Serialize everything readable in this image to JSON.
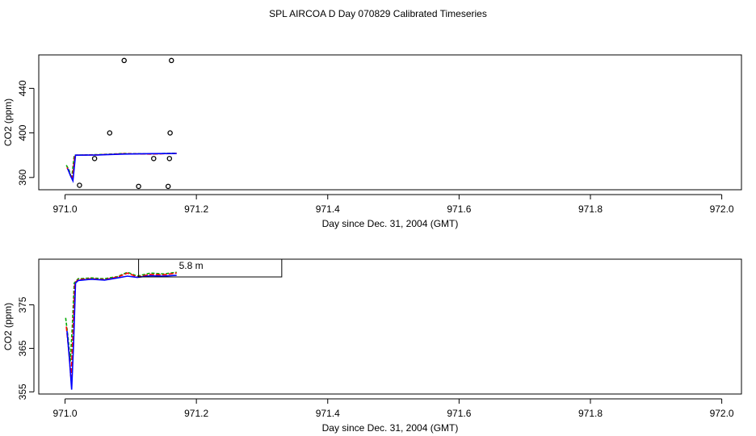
{
  "title": "SPL AIRCOA D  Day 070829  Calibrated Timeseries",
  "chart_data": [
    {
      "type": "scatter",
      "xlabel": "Day since Dec. 31, 2004 (GMT)",
      "ylabel": "CO2 (ppm)",
      "xlim": [
        970.96,
        972.03
      ],
      "ylim": [
        349,
        470
      ],
      "xticks": [
        "971.0",
        "971.2",
        "971.4",
        "971.6",
        "971.8",
        "972.0"
      ],
      "xtick_values": [
        971.0,
        971.2,
        971.4,
        971.6,
        971.8,
        972.0
      ],
      "yticks": [
        "360",
        "400",
        "440"
      ],
      "ytick_values": [
        360,
        400,
        440
      ],
      "points": [
        {
          "x": 971.022,
          "y": 353
        },
        {
          "x": 971.045,
          "y": 377
        },
        {
          "x": 971.068,
          "y": 400
        },
        {
          "x": 971.09,
          "y": 465
        },
        {
          "x": 971.112,
          "y": 352
        },
        {
          "x": 971.135,
          "y": 377
        },
        {
          "x": 971.157,
          "y": 352
        },
        {
          "x": 971.159,
          "y": 377
        },
        {
          "x": 971.16,
          "y": 400
        },
        {
          "x": 971.162,
          "y": 465
        }
      ],
      "series": [
        {
          "color": "#00aa00",
          "points": [
            [
              971.002,
              371
            ],
            [
              971.006,
              367
            ],
            [
              971.01,
              359
            ],
            [
              971.014,
              380
            ],
            [
              971.05,
              380.5
            ],
            [
              971.09,
              381.5
            ],
            [
              971.13,
              381.2
            ],
            [
              971.17,
              381.8
            ]
          ]
        },
        {
          "color": "#ff0000",
          "points": [
            [
              971.003,
              369
            ],
            [
              971.007,
              364
            ],
            [
              971.011,
              358
            ],
            [
              971.015,
              380
            ],
            [
              971.05,
              380.3
            ],
            [
              971.09,
              381.3
            ],
            [
              971.13,
              381.0
            ],
            [
              971.17,
              381.6
            ]
          ]
        },
        {
          "color": "#0000ff",
          "points": [
            [
              971.004,
              368
            ],
            [
              971.008,
              362
            ],
            [
              971.012,
              357
            ],
            [
              971.016,
              380
            ],
            [
              971.05,
              380.2
            ],
            [
              971.09,
              381.0
            ],
            [
              971.13,
              381.4
            ],
            [
              971.17,
              381.5
            ]
          ]
        }
      ]
    },
    {
      "type": "line",
      "xlabel": "Day since Dec. 31, 2004 (GMT)",
      "ylabel": "CO2 (ppm)",
      "xlim": [
        970.96,
        972.03
      ],
      "ylim": [
        354.5,
        385.5
      ],
      "xticks": [
        "971.0",
        "971.2",
        "971.4",
        "971.6",
        "971.8",
        "972.0"
      ],
      "xtick_values": [
        971.0,
        971.2,
        971.4,
        971.6,
        971.8,
        972.0
      ],
      "yticks": [
        "355",
        "365",
        "375"
      ],
      "ytick_values": [
        355,
        365,
        375
      ],
      "legend": {
        "position": "top",
        "entries": [
          "5.8 m"
        ]
      },
      "series": [
        {
          "color": "#00aa00",
          "points": [
            [
              971.001,
              372
            ],
            [
              971.005,
              367
            ],
            [
              971.008,
              362
            ],
            [
              971.011,
              370
            ],
            [
              971.014,
              380
            ],
            [
              971.02,
              381
            ],
            [
              971.04,
              381.2
            ],
            [
              971.06,
              381
            ],
            [
              971.08,
              381.5
            ],
            [
              971.095,
              382.5
            ],
            [
              971.11,
              381.6
            ],
            [
              971.13,
              382.3
            ],
            [
              971.15,
              382.1
            ],
            [
              971.17,
              382.5
            ]
          ]
        },
        {
          "color": "#ff0000",
          "points": [
            [
              971.002,
              370
            ],
            [
              971.006,
              364
            ],
            [
              971.009,
              358
            ],
            [
              971.012,
              368
            ],
            [
              971.015,
              380
            ],
            [
              971.02,
              380.8
            ],
            [
              971.04,
              381
            ],
            [
              971.06,
              380.8
            ],
            [
              971.08,
              381.4
            ],
            [
              971.095,
              382.3
            ],
            [
              971.11,
              381.4
            ],
            [
              971.13,
              382.0
            ],
            [
              971.15,
              381.9
            ],
            [
              971.17,
              382.3
            ]
          ]
        },
        {
          "color": "#0000ff",
          "points": [
            [
              971.003,
              369
            ],
            [
              971.007,
              362
            ],
            [
              971.01,
              355.5
            ],
            [
              971.013,
              366
            ],
            [
              971.016,
              380
            ],
            [
              971.02,
              380.6
            ],
            [
              971.04,
              380.9
            ],
            [
              971.06,
              380.7
            ],
            [
              971.08,
              381.2
            ],
            [
              971.095,
              381.6
            ],
            [
              971.11,
              381.3
            ],
            [
              971.13,
              381.7
            ],
            [
              971.15,
              381.6
            ],
            [
              971.17,
              381.8
            ]
          ]
        }
      ]
    }
  ]
}
